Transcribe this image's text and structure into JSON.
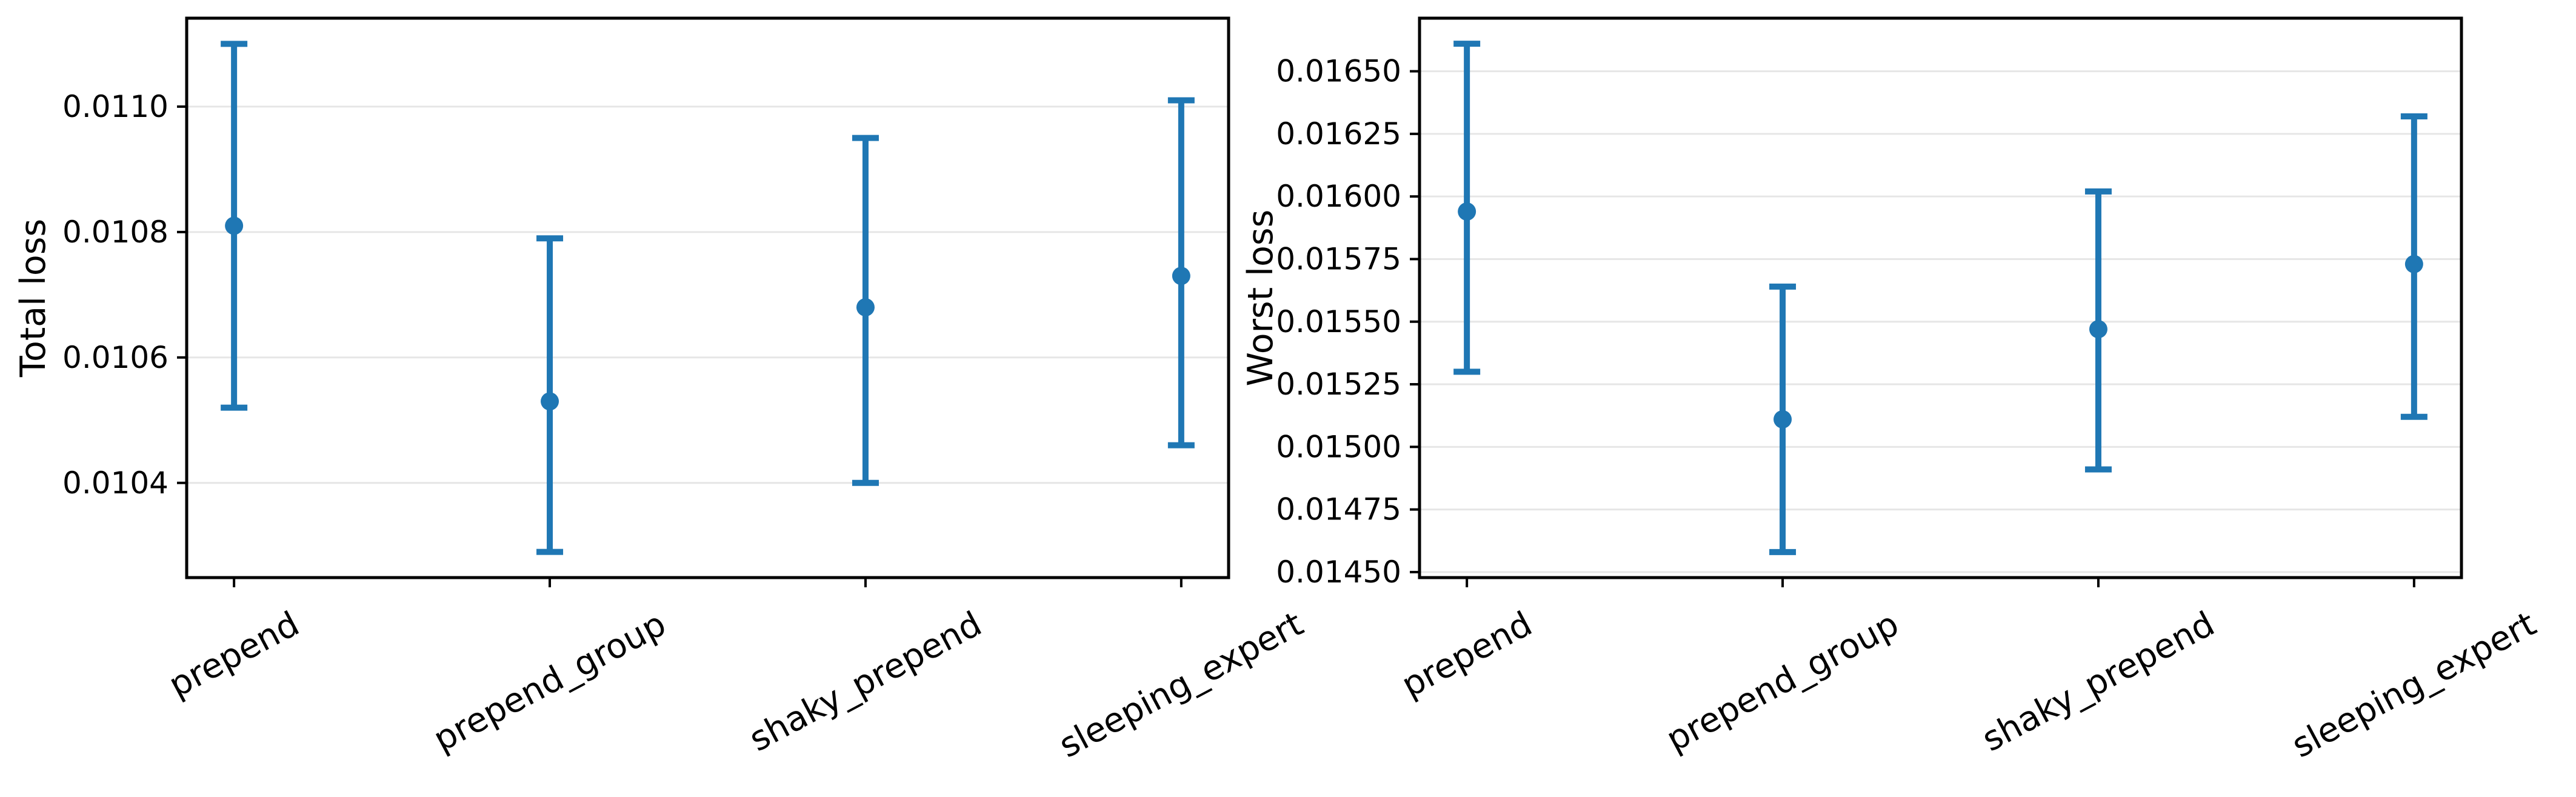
{
  "figure": {
    "background": "#ffffff",
    "accent_color": "#1f77b4",
    "grid_color": "#e6e6e6",
    "spine_color": "#000000",
    "text_color": "#000000"
  },
  "chart_data": [
    {
      "type": "scatter",
      "subtype": "errorbar",
      "title": "",
      "xlabel": "",
      "ylabel": "Total loss",
      "legend": "none",
      "grid": "horizontal",
      "categories": [
        "prepend",
        "prepend_group",
        "shaky_prepend",
        "sleeping_expert"
      ],
      "series": [
        {
          "name": "mean_with_error",
          "values": [
            0.01081,
            0.01053,
            0.01068,
            0.01073
          ],
          "err_low": [
            0.01052,
            0.01029,
            0.0104,
            0.01046
          ],
          "err_high": [
            0.0111,
            0.01079,
            0.01095,
            0.01101
          ]
        }
      ],
      "ylim": [
        0.010249,
        0.011141
      ],
      "yticks": [
        {
          "value": 0.0104,
          "label": "0.0104"
        },
        {
          "value": 0.0106,
          "label": "0.0106"
        },
        {
          "value": 0.0108,
          "label": "0.0108"
        },
        {
          "value": 0.011,
          "label": "0.0110"
        }
      ]
    },
    {
      "type": "scatter",
      "subtype": "errorbar",
      "title": "",
      "xlabel": "",
      "ylabel": "Worst loss",
      "legend": "none",
      "grid": "horizontal",
      "categories": [
        "prepend",
        "prepend_group",
        "shaky_prepend",
        "sleeping_expert"
      ],
      "series": [
        {
          "name": "mean_with_error",
          "values": [
            0.01594,
            0.01511,
            0.01547,
            0.01573
          ],
          "err_low": [
            0.0153,
            0.01458,
            0.01491,
            0.01512
          ],
          "err_high": [
            0.01661,
            0.01564,
            0.01602,
            0.01632
          ]
        }
      ],
      "ylim": [
        0.014478,
        0.016712
      ],
      "yticks": [
        {
          "value": 0.0145,
          "label": "0.01450"
        },
        {
          "value": 0.01475,
          "label": "0.01475"
        },
        {
          "value": 0.015,
          "label": "0.01500"
        },
        {
          "value": 0.01525,
          "label": "0.01525"
        },
        {
          "value": 0.0155,
          "label": "0.01550"
        },
        {
          "value": 0.01575,
          "label": "0.01575"
        },
        {
          "value": 0.016,
          "label": "0.01600"
        },
        {
          "value": 0.01625,
          "label": "0.01625"
        },
        {
          "value": 0.0165,
          "label": "0.01650"
        }
      ]
    }
  ]
}
